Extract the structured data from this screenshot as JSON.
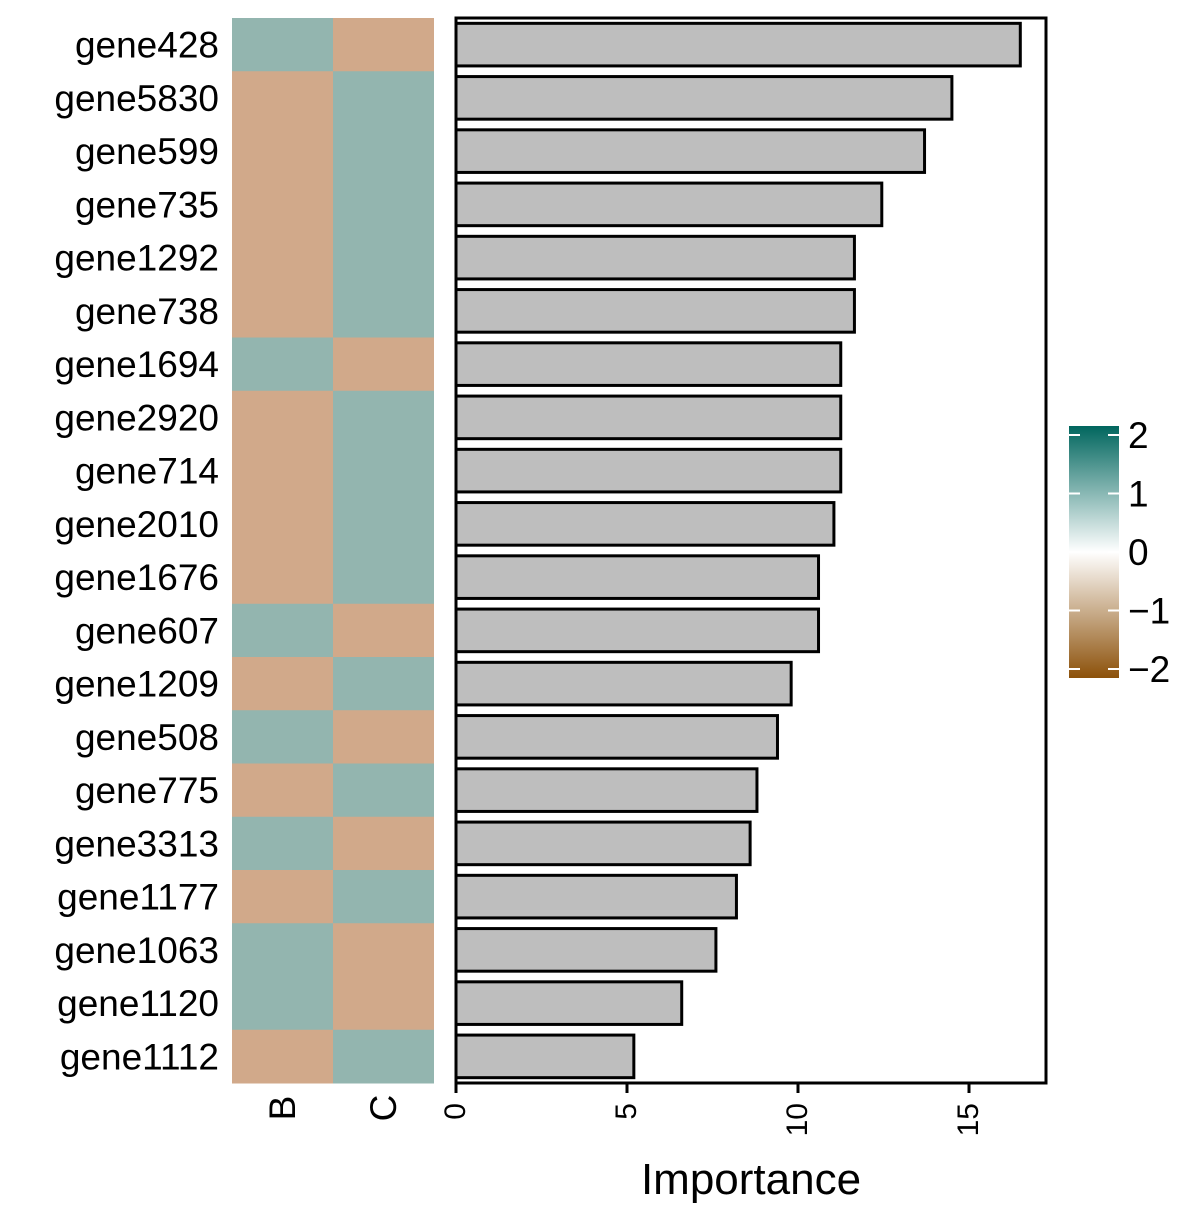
{
  "chart_data": {
    "type": "bar",
    "orientation": "horizontal",
    "xlabel": "Importance",
    "xlim": [
      0,
      17.2
    ],
    "xticks": [
      0,
      5,
      10,
      15
    ],
    "xtick_labels": [
      "0",
      "5",
      "10",
      "15"
    ],
    "categories": [
      "gene428",
      "gene5830",
      "gene599",
      "gene735",
      "gene1292",
      "gene738",
      "gene1694",
      "gene2920",
      "gene714",
      "gene2010",
      "gene1676",
      "gene607",
      "gene1209",
      "gene508",
      "gene775",
      "gene3313",
      "gene1177",
      "gene1063",
      "gene1120",
      "gene1112"
    ],
    "values": [
      16.5,
      14.5,
      13.7,
      12.45,
      11.65,
      11.65,
      11.25,
      11.25,
      11.25,
      11.05,
      10.6,
      10.6,
      9.8,
      9.4,
      8.8,
      8.6,
      8.2,
      7.6,
      6.6,
      5.2
    ],
    "bar_color": "#bebebe",
    "heatmap": {
      "columns": [
        "B",
        "C"
      ],
      "values": [
        [
          1,
          -1
        ],
        [
          -1,
          1
        ],
        [
          -1,
          1
        ],
        [
          -1,
          1
        ],
        [
          -1,
          1
        ],
        [
          -1,
          1
        ],
        [
          1,
          -1
        ],
        [
          -1,
          1
        ],
        [
          -1,
          1
        ],
        [
          -1,
          1
        ],
        [
          -1,
          1
        ],
        [
          1,
          -1
        ],
        [
          -1,
          1
        ],
        [
          1,
          -1
        ],
        [
          -1,
          1
        ],
        [
          1,
          -1
        ],
        [
          -1,
          1
        ],
        [
          1,
          -1
        ],
        [
          1,
          -1
        ],
        [
          -1,
          1
        ]
      ],
      "colors": {
        "high": "#93b5af",
        "low": "#d1a98a"
      }
    },
    "colorbar": {
      "range": [
        -2,
        2
      ],
      "ticks": [
        2,
        1,
        0,
        -1,
        -2
      ],
      "tick_labels": [
        "2",
        "1",
        "0",
        "−1",
        "−2"
      ],
      "colors": {
        "max": "#01665e",
        "mid": "#ffffff",
        "min": "#8c510a"
      }
    }
  }
}
